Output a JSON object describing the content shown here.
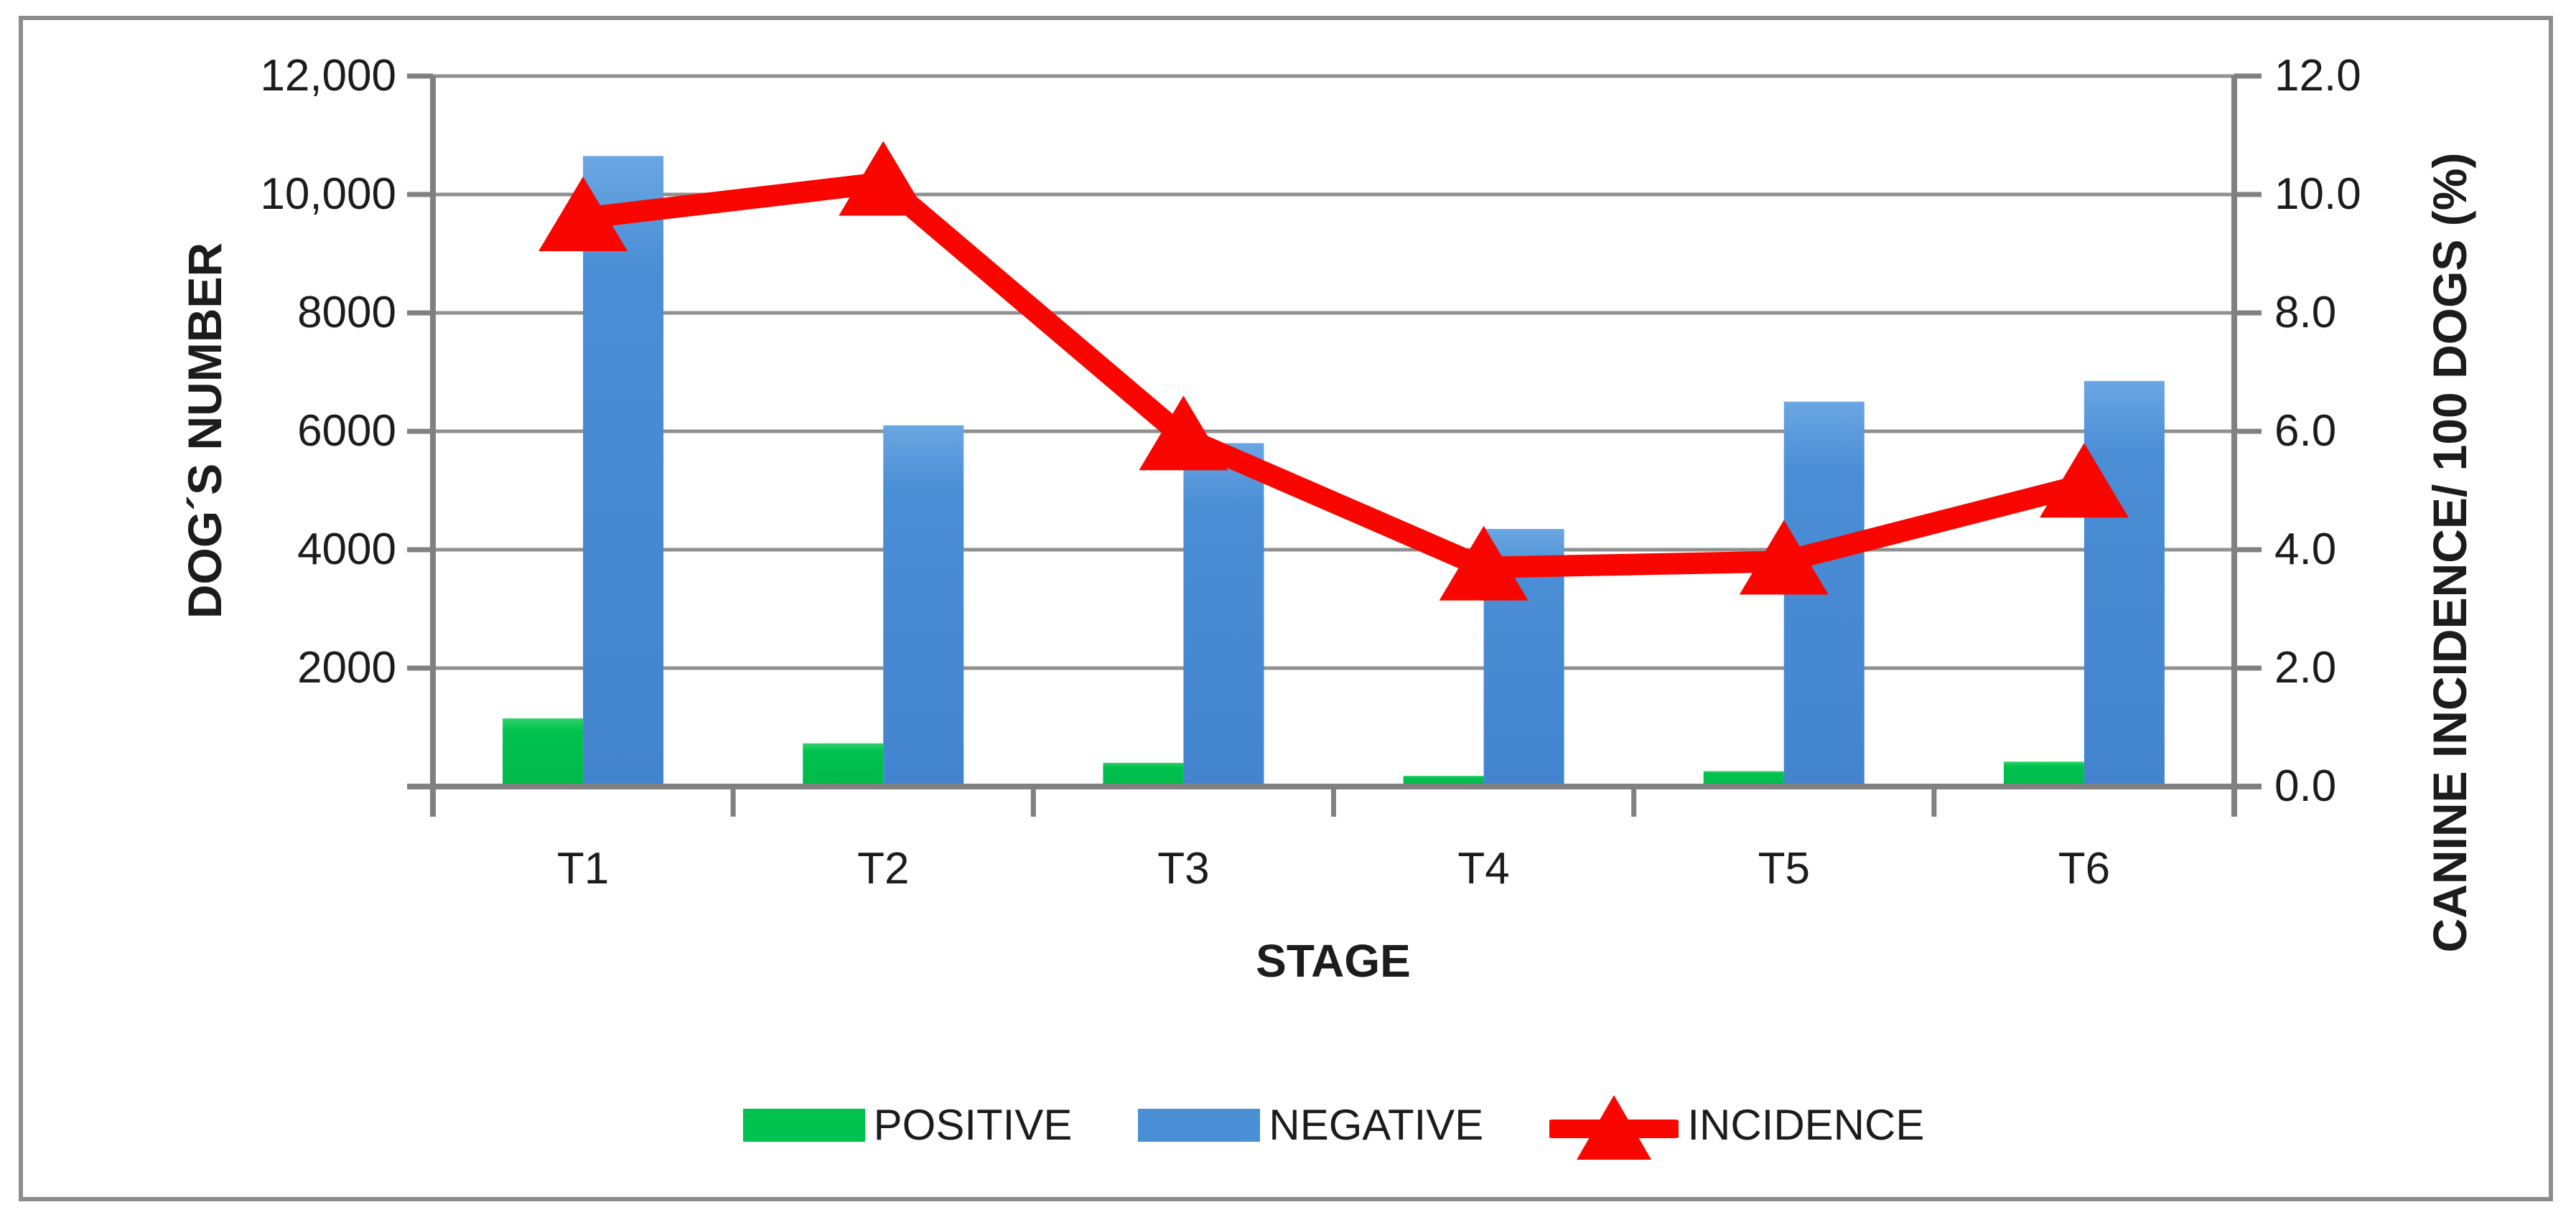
{
  "figure": {
    "background": "#ffffff",
    "border_color": "#8c8c8c"
  },
  "axes": {
    "left": {
      "title": "DOG´S NUMBER",
      "ticks": [
        "12,000",
        "10,000",
        "8000",
        "6000",
        "4000",
        "2000"
      ]
    },
    "right": {
      "title": "CANINE INCIDENCE/ 100 DOGS (%)",
      "ticks": [
        "12.0",
        "10.0",
        "8.0",
        "6.0",
        "4.0",
        "2.0",
        "0.0"
      ]
    },
    "x": {
      "title": "STAGE",
      "categories": [
        "T1",
        "T2",
        "T3",
        "T4",
        "T5",
        "T6"
      ]
    }
  },
  "legend": [
    {
      "label": "POSITIVE",
      "type": "swatch",
      "color": "#00c24f"
    },
    {
      "label": "NEGATIVE",
      "type": "swatch",
      "color": "#4a8ed5"
    },
    {
      "label": "INCIDENCE",
      "type": "line-marker",
      "color": "#fa0600"
    }
  ],
  "colors": {
    "positive": "#00c24f",
    "positive_light": "#2ed368",
    "positive_dark": "#00b94a",
    "negative": "#4a8ed5",
    "negative_light": "#6aa6e2",
    "negative_dark": "#4384cf",
    "incidence": "#fa0600",
    "gridline": "#909090",
    "axis": "#808080",
    "text": "#1c1c1c"
  },
  "chart_data": {
    "type": "bar+line",
    "title": "",
    "categories": [
      "T1",
      "T2",
      "T3",
      "T4",
      "T5",
      "T6"
    ],
    "series": [
      {
        "name": "POSITIVE",
        "type": "bar",
        "axis": "left",
        "color": "#00c24f",
        "values": [
          1150,
          730,
          400,
          180,
          260,
          420
        ]
      },
      {
        "name": "NEGATIVE",
        "type": "bar",
        "axis": "left",
        "color": "#4a8ed5",
        "values": [
          10650,
          6100,
          5800,
          4350,
          6500,
          6850
        ]
      },
      {
        "name": "INCIDENCE",
        "type": "line",
        "axis": "right",
        "color": "#fa0600",
        "marker": "triangle-up",
        "values": [
          9.6,
          10.2,
          5.9,
          3.7,
          3.8,
          5.1
        ]
      }
    ],
    "left_ylabel": "DOG´S NUMBER",
    "right_ylabel": "CANINE INCIDENCE/ 100 DOGS (%)",
    "xlabel": "STAGE",
    "left_ylim": [
      0,
      12000
    ],
    "right_ylim": [
      0,
      12.0
    ],
    "grid": true,
    "legend_position": "bottom"
  }
}
